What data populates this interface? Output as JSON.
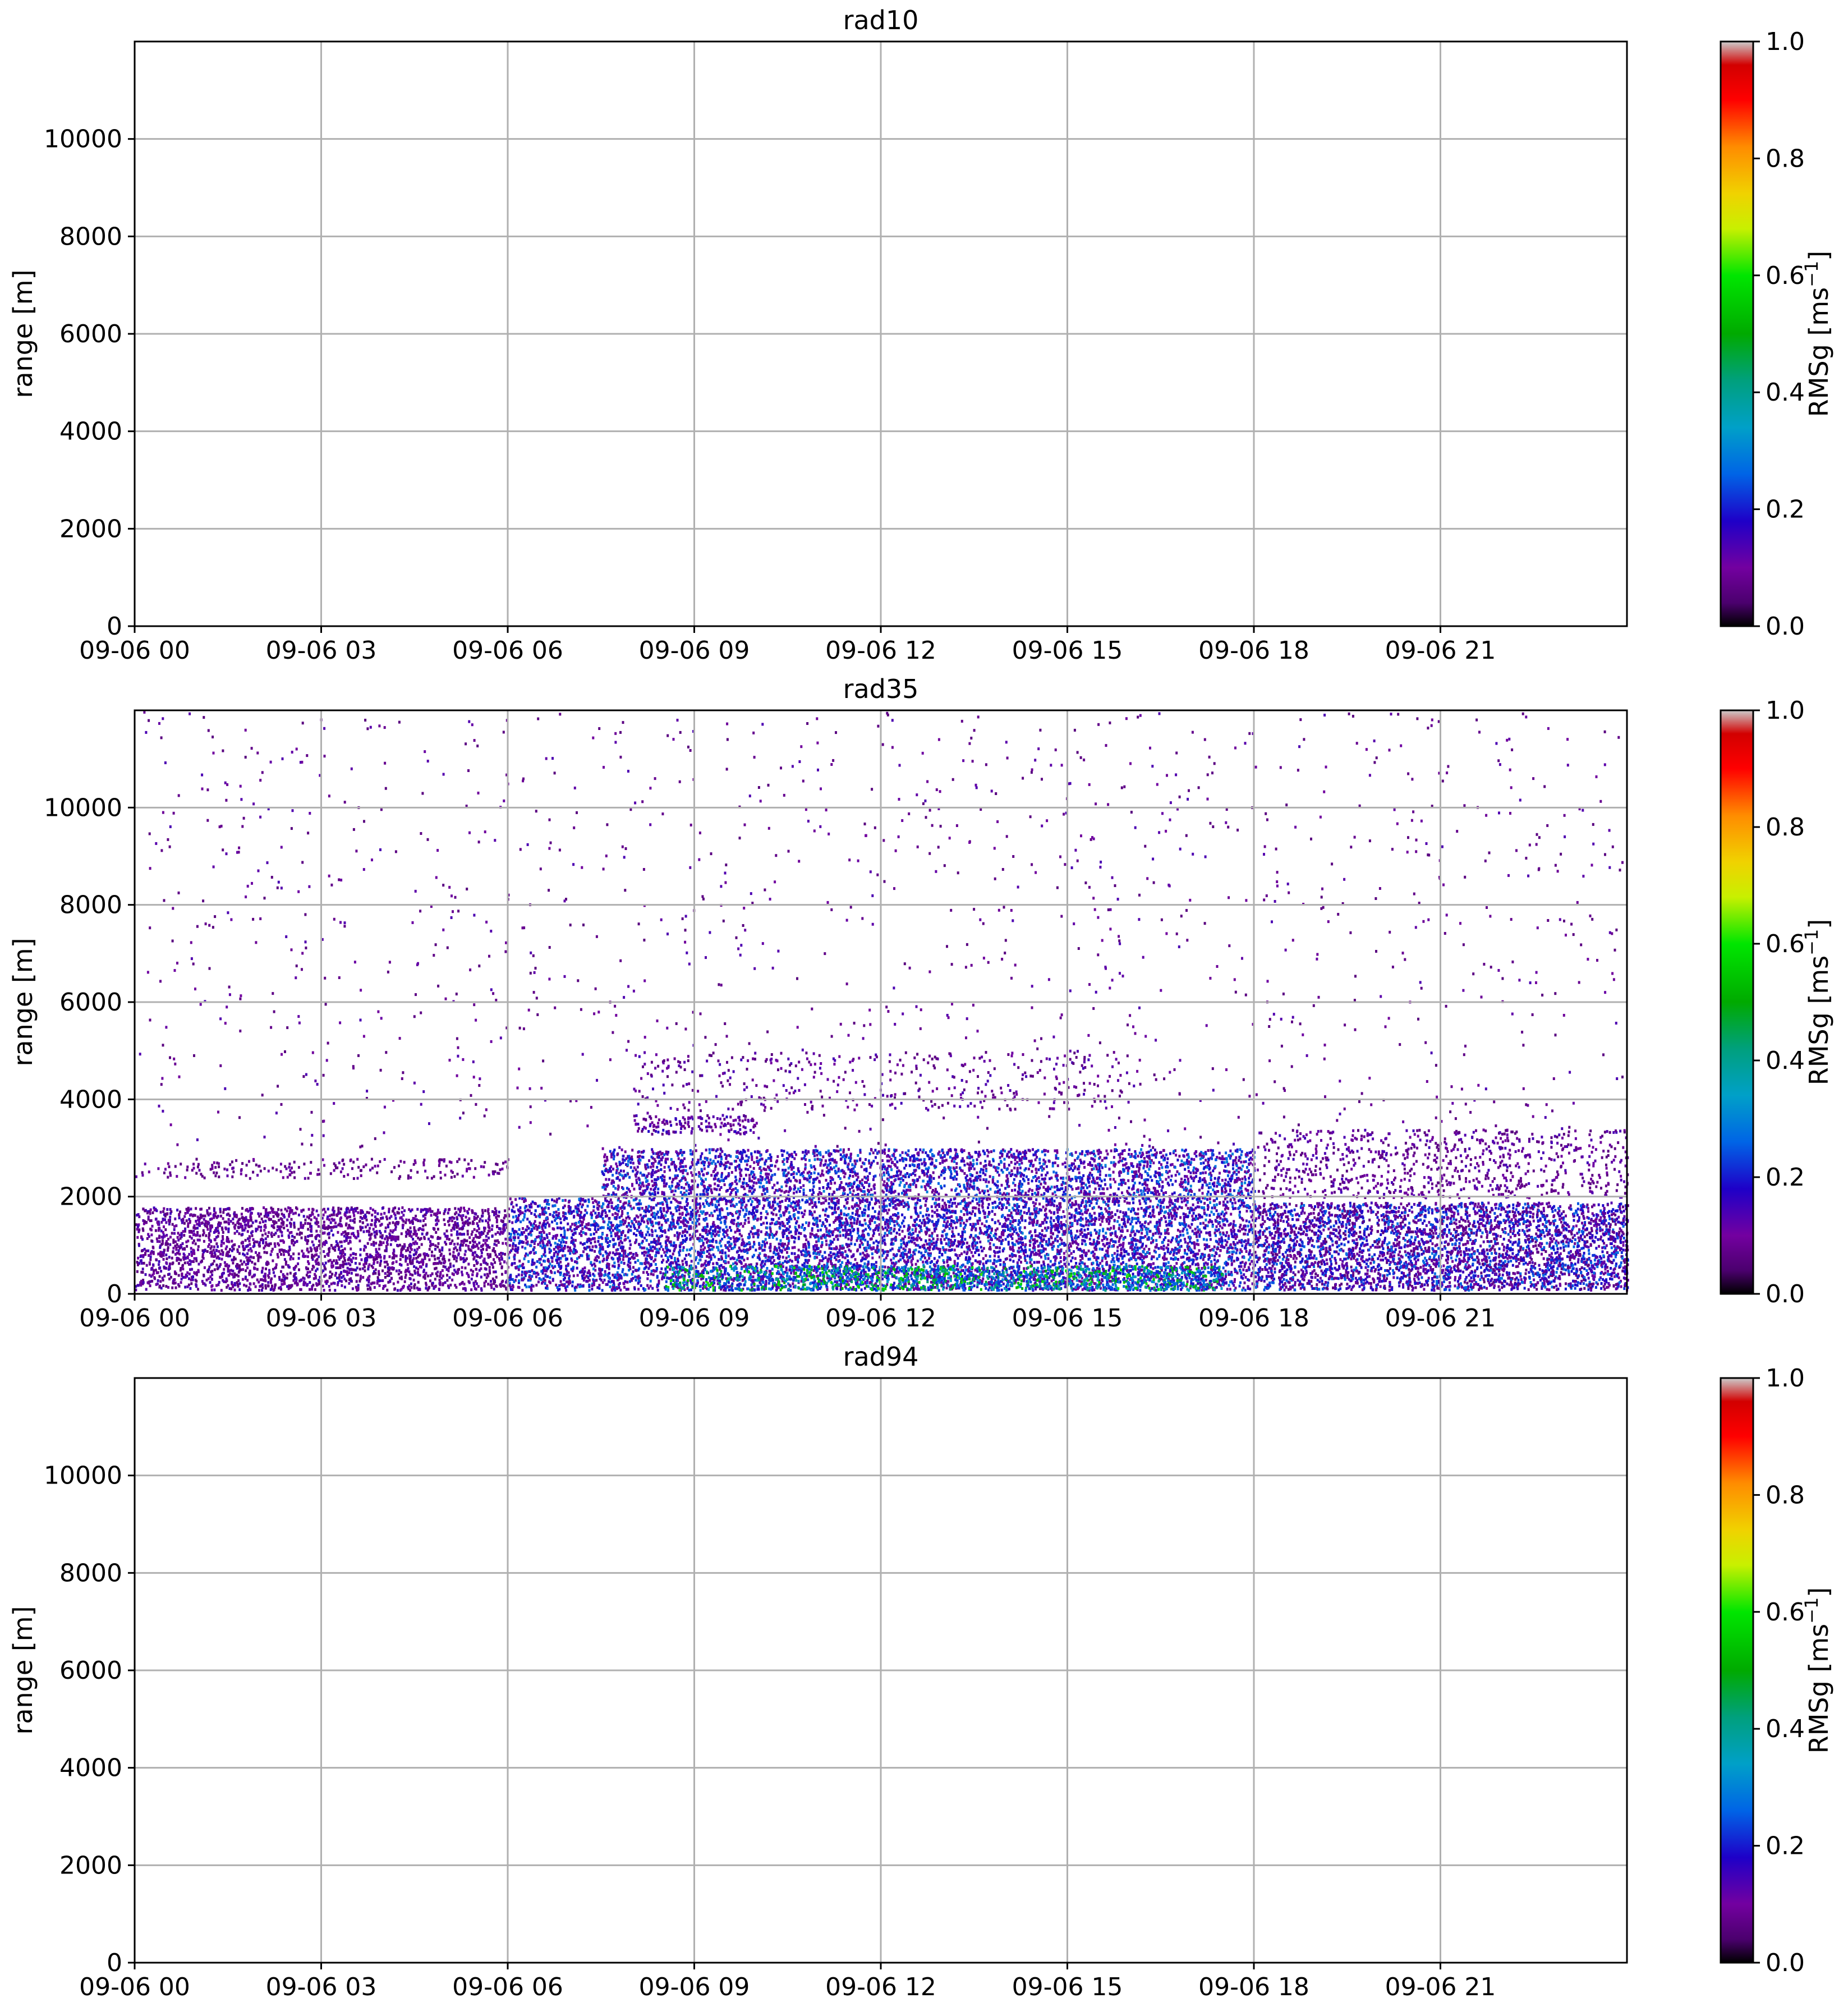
{
  "colormap": {
    "stops": [
      {
        "v": 0.0,
        "c": "#000000"
      },
      {
        "v": 0.04,
        "c": "#4b006e"
      },
      {
        "v": 0.1,
        "c": "#7300a0"
      },
      {
        "v": 0.18,
        "c": "#1e00c8"
      },
      {
        "v": 0.26,
        "c": "#0064e6"
      },
      {
        "v": 0.34,
        "c": "#00a0c8"
      },
      {
        "v": 0.42,
        "c": "#00a07d"
      },
      {
        "v": 0.5,
        "c": "#00aa00"
      },
      {
        "v": 0.6,
        "c": "#00e600"
      },
      {
        "v": 0.68,
        "c": "#c8f000"
      },
      {
        "v": 0.74,
        "c": "#f0d200"
      },
      {
        "v": 0.82,
        "c": "#ff8c00"
      },
      {
        "v": 0.9,
        "c": "#ff0000"
      },
      {
        "v": 0.96,
        "c": "#d20000"
      },
      {
        "v": 1.0,
        "c": "#cccccc"
      }
    ]
  },
  "chart_data": [
    {
      "type": "heatmap",
      "title": "rad10",
      "xlabel": "",
      "ylabel": "range [m]",
      "x_ticks": [
        "09-06 00",
        "09-06 03",
        "09-06 06",
        "09-06 09",
        "09-06 12",
        "09-06 15",
        "09-06 18",
        "09-06 21"
      ],
      "x_tick_hours": [
        0,
        3,
        6,
        9,
        12,
        15,
        18,
        21
      ],
      "xlim_hours": [
        0,
        24
      ],
      "y_ticks": [
        "0",
        "2000",
        "4000",
        "6000",
        "8000",
        "10000"
      ],
      "y_tick_values": [
        0,
        2000,
        4000,
        6000,
        8000,
        10000
      ],
      "ylim": [
        0,
        12000
      ],
      "grid": true,
      "colorbar": {
        "label_main": "RMSg [ms",
        "label_sup": "−1",
        "label_end": "]",
        "range": [
          0.0,
          1.0
        ],
        "ticks": [
          "0.0",
          "0.2",
          "0.4",
          "0.6",
          "0.8",
          "1.0"
        ],
        "tick_values": [
          0,
          0.2,
          0.4,
          0.6,
          0.8,
          1.0
        ]
      },
      "has_data": false,
      "layers": []
    },
    {
      "type": "heatmap",
      "title": "rad35",
      "xlabel": "",
      "ylabel": "range [m]",
      "x_ticks": [
        "09-06 00",
        "09-06 03",
        "09-06 06",
        "09-06 09",
        "09-06 12",
        "09-06 15",
        "09-06 18",
        "09-06 21"
      ],
      "x_tick_hours": [
        0,
        3,
        6,
        9,
        12,
        15,
        18,
        21
      ],
      "xlim_hours": [
        0,
        24
      ],
      "y_ticks": [
        "0",
        "2000",
        "4000",
        "6000",
        "8000",
        "10000"
      ],
      "y_tick_values": [
        0,
        2000,
        4000,
        6000,
        8000,
        10000
      ],
      "ylim": [
        0,
        12000
      ],
      "grid": true,
      "colorbar": {
        "label_main": "RMSg [ms",
        "label_sup": "−1",
        "label_end": "]",
        "range": [
          0.0,
          1.0
        ],
        "ticks": [
          "0.0",
          "0.2",
          "0.4",
          "0.6",
          "0.8",
          "1.0"
        ],
        "tick_values": [
          0,
          0.2,
          0.4,
          0.6,
          0.8,
          1.0
        ]
      },
      "has_data": true,
      "layers": [
        {
          "name": "boundary-layer-night",
          "t0": 0,
          "t1": 6,
          "r0": 100,
          "r1": 1800,
          "density": 0.55,
          "vmin": 0.06,
          "vmax": 0.16
        },
        {
          "name": "boundary-layer-day",
          "t0": 6,
          "t1": 18,
          "r0": 100,
          "r1": 2000,
          "density": 0.8,
          "vmin": 0.08,
          "vmax": 0.3
        },
        {
          "name": "surface-turbulence",
          "t0": 8.5,
          "t1": 17.5,
          "r0": 100,
          "r1": 600,
          "density": 0.6,
          "vmin": 0.2,
          "vmax": 0.62
        },
        {
          "name": "elevated-layer",
          "t0": 7.5,
          "t1": 18,
          "r0": 2000,
          "r1": 3000,
          "density": 0.55,
          "vmin": 0.08,
          "vmax": 0.3
        },
        {
          "name": "elevated-layer-top",
          "t0": 8,
          "t1": 10,
          "r0": 3300,
          "r1": 3700,
          "density": 0.4,
          "vmin": 0.07,
          "vmax": 0.18
        },
        {
          "name": "mid-level-cloud",
          "t0": 8,
          "t1": 16,
          "r0": 3800,
          "r1": 5000,
          "density": 0.08,
          "vmin": 0.06,
          "vmax": 0.15
        },
        {
          "name": "evening-layer",
          "t0": 18,
          "t1": 24,
          "r0": 100,
          "r1": 1900,
          "density": 0.7,
          "vmin": 0.06,
          "vmax": 0.28
        },
        {
          "name": "evening-upper",
          "t0": 18,
          "t1": 24,
          "r0": 2000,
          "r1": 3400,
          "density": 0.2,
          "vmin": 0.06,
          "vmax": 0.15
        },
        {
          "name": "night-upper",
          "t0": 0,
          "t1": 6,
          "r0": 2400,
          "r1": 2800,
          "density": 0.18,
          "vmin": 0.06,
          "vmax": 0.12
        },
        {
          "name": "sparse-noise",
          "t0": 0,
          "t1": 24,
          "r0": 3000,
          "r1": 12000,
          "density": 0.012,
          "vmin": 0.06,
          "vmax": 0.14
        }
      ]
    },
    {
      "type": "heatmap",
      "title": "rad94",
      "xlabel": "",
      "ylabel": "range [m]",
      "x_ticks": [
        "09-06 00",
        "09-06 03",
        "09-06 06",
        "09-06 09",
        "09-06 12",
        "09-06 15",
        "09-06 18",
        "09-06 21"
      ],
      "x_tick_hours": [
        0,
        3,
        6,
        9,
        12,
        15,
        18,
        21
      ],
      "xlim_hours": [
        0,
        24
      ],
      "y_ticks": [
        "0",
        "2000",
        "4000",
        "6000",
        "8000",
        "10000"
      ],
      "y_tick_values": [
        0,
        2000,
        4000,
        6000,
        8000,
        10000
      ],
      "ylim": [
        0,
        12000
      ],
      "grid": true,
      "colorbar": {
        "label_main": "RMSg [ms",
        "label_sup": "−1",
        "label_end": "]",
        "range": [
          0.0,
          1.0
        ],
        "ticks": [
          "0.0",
          "0.2",
          "0.4",
          "0.6",
          "0.8",
          "1.0"
        ],
        "tick_values": [
          0,
          0.2,
          0.4,
          0.6,
          0.8,
          1.0
        ]
      },
      "has_data": false,
      "layers": []
    }
  ]
}
